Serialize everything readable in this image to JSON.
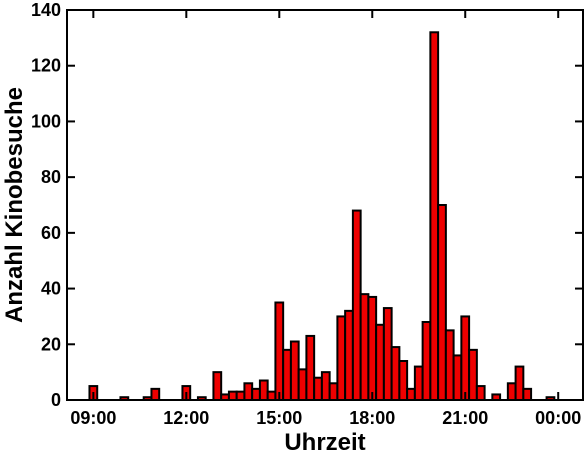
{
  "chart_data": {
    "type": "histogram",
    "x_label": "Uhrzeit",
    "y_label": "Anzahl Kinobesuche",
    "bins": [
      8.875,
      9.125,
      9.375,
      9.625,
      9.875,
      10.125,
      10.375,
      10.625,
      10.875,
      11.125,
      11.375,
      11.625,
      11.875,
      12.125,
      12.375,
      12.625,
      12.875,
      13.125,
      13.375,
      13.625,
      13.875,
      14.125,
      14.375,
      14.625,
      14.875,
      15.125,
      15.375,
      15.625,
      15.875,
      16.125,
      16.375,
      16.625,
      16.875,
      17.125,
      17.375,
      17.625,
      17.875,
      18.125,
      18.375,
      18.625,
      18.875,
      19.125,
      19.375,
      19.625,
      19.875,
      20.125,
      20.375,
      20.625,
      20.875,
      21.125,
      21.375,
      21.625,
      21.875,
      22.125,
      22.375,
      22.625,
      22.875,
      23.125,
      23.375,
      23.625,
      23.875
    ],
    "values": [
      5,
      0,
      0,
      0,
      1,
      0,
      0,
      1,
      4,
      0,
      0,
      0,
      5,
      0,
      1,
      0,
      10,
      2,
      3,
      3,
      6,
      4,
      7,
      3,
      35,
      18,
      21,
      11,
      23,
      8,
      10,
      6,
      30,
      32,
      68,
      38,
      37,
      27,
      33,
      19,
      14,
      4,
      12,
      28,
      132,
      70,
      25,
      16,
      30,
      18,
      5,
      0,
      2,
      0,
      6,
      12,
      4,
      0,
      0,
      1
    ],
    "color": "#ee0000",
    "xlim": [
      8.15,
      24.8
    ],
    "xticks": [
      {
        "value": 9,
        "label": "09:00"
      },
      {
        "value": 12,
        "label": "12:00"
      },
      {
        "value": 15,
        "label": "15:00"
      },
      {
        "value": 18,
        "label": "18:00"
      },
      {
        "value": 21,
        "label": "21:00"
      },
      {
        "value": 24,
        "label": "00:00"
      }
    ],
    "ylim": [
      0,
      140
    ],
    "yticks": [
      0,
      20,
      40,
      60,
      80,
      100,
      120,
      140
    ]
  }
}
